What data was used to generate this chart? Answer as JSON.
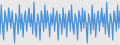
{
  "values": [
    -8,
    12,
    -3,
    -12,
    8,
    4,
    -6,
    10,
    6,
    -4,
    8,
    -2,
    -14,
    6,
    2,
    -8,
    12,
    -5,
    6,
    -10,
    3,
    8,
    -6,
    4,
    10,
    -3,
    6,
    -8,
    14,
    -4,
    -10,
    6,
    2,
    -12,
    8,
    4,
    -6,
    12,
    -4,
    8,
    3,
    -10,
    6,
    -2,
    10,
    -6,
    4,
    8,
    -12,
    6,
    2,
    -8,
    10,
    -4,
    6,
    -10,
    4,
    8,
    -6,
    12,
    -3,
    -8,
    6,
    2,
    -12,
    8,
    4,
    -6,
    10,
    -4,
    8,
    -2,
    -14,
    6,
    2,
    -8,
    12,
    -5,
    6,
    -10,
    3,
    8,
    -6,
    4,
    10,
    -3,
    6,
    -8,
    14,
    -4,
    -10,
    6,
    2,
    -12,
    8,
    4,
    -6,
    12,
    -4,
    8
  ],
  "line_color": "#4a90d9",
  "fill_color": "#5aaee8",
  "fill_alpha": 1.0,
  "background_color": "#e8e8e8",
  "linewidth": 0.8
}
